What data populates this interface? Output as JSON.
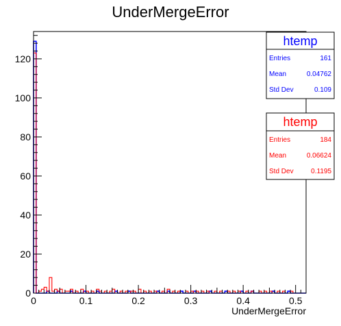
{
  "chart_data": {
    "type": "histogram",
    "title": "UnderMergeError",
    "xlabel": "UnderMergeError",
    "ylabel": "",
    "xlim": [
      0,
      0.52
    ],
    "ylim": [
      0,
      134
    ],
    "x_ticks": [
      0,
      0.1,
      0.2,
      0.3,
      0.4,
      0.5
    ],
    "x_tick_labels": [
      "0",
      "0.1",
      "0.2",
      "0.3",
      "0.4",
      "0.5"
    ],
    "y_ticks": [
      0,
      20,
      40,
      60,
      80,
      100,
      120
    ],
    "y_tick_labels": [
      "0",
      "20",
      "40",
      "60",
      "80",
      "100",
      "120"
    ],
    "bins": 104,
    "bin_width": 0.005,
    "series": [
      {
        "color": "#0000ff",
        "counts_nonzero": [
          [
            0,
            129
          ],
          [
            5,
            1
          ],
          [
            9,
            1
          ],
          [
            14,
            1
          ],
          [
            19,
            1
          ],
          [
            24,
            1
          ],
          [
            31,
            1
          ],
          [
            36,
            1
          ],
          [
            47,
            1
          ],
          [
            51,
            1
          ],
          [
            56,
            1
          ],
          [
            61,
            1
          ],
          [
            67,
            1
          ],
          [
            73,
            1
          ],
          [
            79,
            1
          ],
          [
            83,
            1
          ],
          [
            91,
            1
          ],
          [
            97,
            1
          ]
        ]
      },
      {
        "color": "#ff0000",
        "counts_nonzero": [
          [
            0,
            123
          ],
          [
            2,
            1
          ],
          [
            3,
            2
          ],
          [
            4,
            3
          ],
          [
            5,
            1
          ],
          [
            6,
            8
          ],
          [
            7,
            1
          ],
          [
            8,
            2
          ],
          [
            9,
            1
          ],
          [
            10,
            2
          ],
          [
            12,
            1
          ],
          [
            13,
            1
          ],
          [
            14,
            2
          ],
          [
            16,
            1
          ],
          [
            18,
            2
          ],
          [
            20,
            1
          ],
          [
            22,
            1
          ],
          [
            24,
            2
          ],
          [
            25,
            1
          ],
          [
            27,
            1
          ],
          [
            29,
            1
          ],
          [
            30,
            2
          ],
          [
            33,
            1
          ],
          [
            35,
            1
          ],
          [
            37,
            1
          ],
          [
            38,
            1
          ],
          [
            40,
            2
          ],
          [
            42,
            1
          ],
          [
            44,
            1
          ],
          [
            46,
            1
          ],
          [
            49,
            1
          ],
          [
            51,
            2
          ],
          [
            53,
            1
          ],
          [
            55,
            1
          ],
          [
            58,
            1
          ],
          [
            60,
            1
          ],
          [
            62,
            1
          ],
          [
            64,
            1
          ],
          [
            66,
            1
          ],
          [
            69,
            1
          ],
          [
            71,
            1
          ],
          [
            74,
            1
          ],
          [
            76,
            1
          ],
          [
            78,
            1
          ],
          [
            81,
            1
          ],
          [
            83,
            1
          ],
          [
            86,
            1
          ],
          [
            88,
            1
          ],
          [
            90,
            1
          ],
          [
            93,
            1
          ],
          [
            95,
            1
          ],
          [
            98,
            1
          ]
        ]
      }
    ],
    "legend_position": "top-right"
  },
  "stat_boxes": [
    {
      "title": "htemp",
      "color": "#0000ff",
      "rows": [
        {
          "label": "Entries",
          "value": "161"
        },
        {
          "label": "Mean",
          "value": "0.04762"
        },
        {
          "label": "Std Dev",
          "value": "0.109"
        }
      ]
    },
    {
      "title": "htemp",
      "color": "#ff0000",
      "rows": [
        {
          "label": "Entries",
          "value": "184"
        },
        {
          "label": "Mean",
          "value": "0.06624"
        },
        {
          "label": "Std Dev",
          "value": "0.1195"
        }
      ]
    }
  ]
}
